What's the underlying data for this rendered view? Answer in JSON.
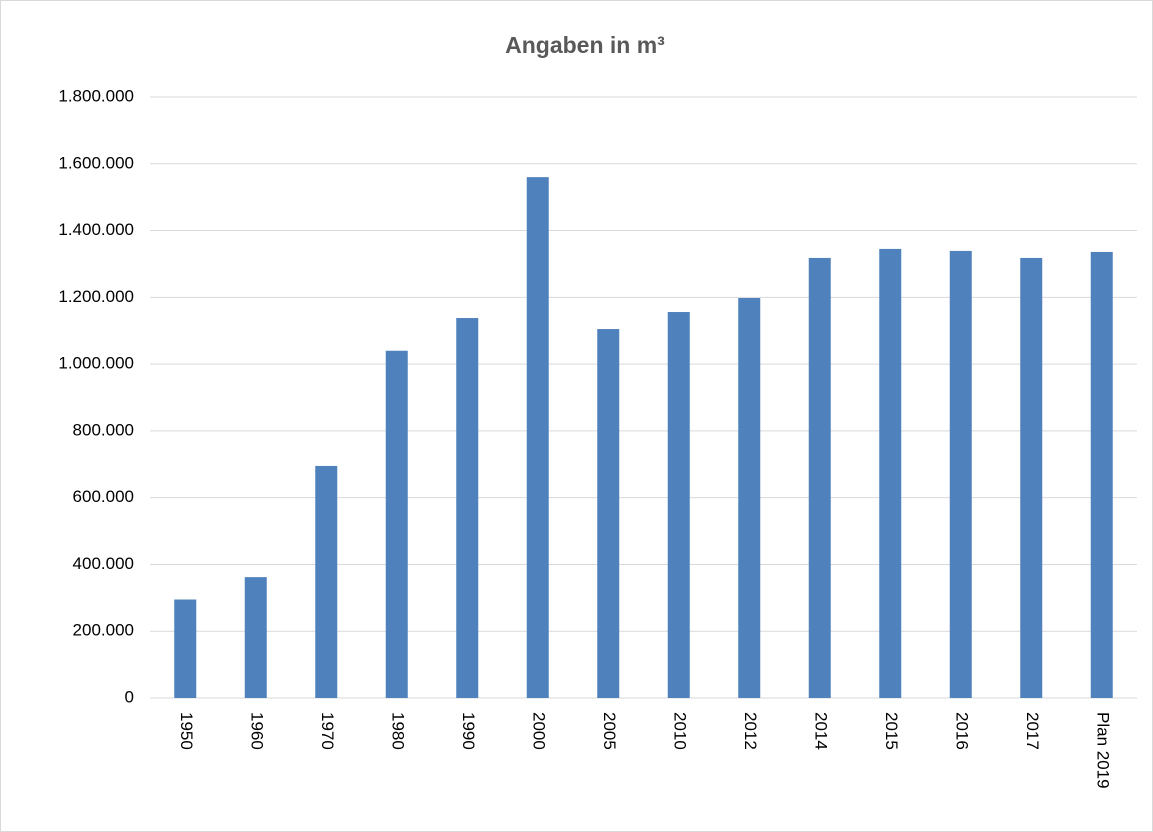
{
  "chart_data": {
    "type": "bar",
    "title": "Angaben in m³",
    "categories": [
      "1950",
      "1960",
      "1970",
      "1980",
      "1990",
      "2000",
      "2005",
      "2010",
      "2012",
      "2014",
      "2015",
      "2016",
      "2017",
      "Plan 2019"
    ],
    "values": [
      295000,
      362000,
      695000,
      1040000,
      1138000,
      1560000,
      1105000,
      1156000,
      1198000,
      1318000,
      1345000,
      1339000,
      1318000,
      1336000
    ],
    "color": "#4f81bd",
    "ylim": [
      0,
      1800000
    ],
    "yticks": [
      0,
      {
        "value": 200000,
        "label": "200.000"
      },
      {
        "value": 400000,
        "label": "400.000"
      },
      {
        "value": 600000,
        "label": "600.000"
      },
      {
        "value": 800000,
        "label": "800.000"
      },
      {
        "value": 1000000,
        "label": "1.000.000"
      },
      {
        "value": 1200000,
        "label": "1.200.000"
      },
      {
        "value": 1400000,
        "label": "1.400.000"
      },
      {
        "value": 1600000,
        "label": "1.600.000"
      },
      {
        "value": 1800000,
        "label": "1.800.000"
      }
    ],
    "grid": true
  }
}
